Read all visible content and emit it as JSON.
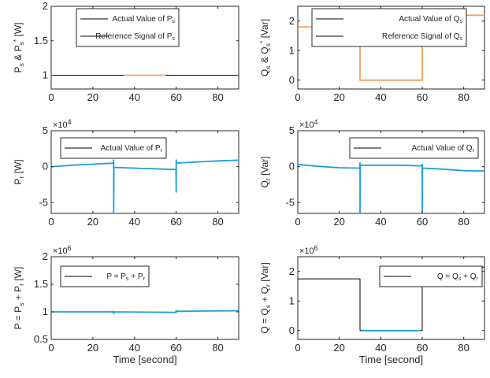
{
  "colors": {
    "actual": "#000000",
    "reference": "#f4a460",
    "rotor": "#1f9fd8",
    "axes": "#262626"
  },
  "chart_data": [
    {
      "type": "line",
      "id": "ps",
      "ylabel": "P_s & P_s^* [W]",
      "xlabel": "",
      "exponent": "",
      "xlim": [
        0,
        90
      ],
      "ylim": [
        0.8,
        2.0
      ],
      "yticks": [
        1,
        1.5,
        2
      ],
      "yticklabels": [
        "1",
        "1.5",
        "2"
      ],
      "xticks": [
        0,
        20,
        40,
        60,
        80
      ],
      "xticklabels": [
        "0",
        "20",
        "40",
        "60",
        "80"
      ],
      "legend": [
        "Actual Value of P_s",
        "Reference Signal of P_s"
      ],
      "series": [
        {
          "name": "Actual Value of P_s",
          "color": "#000000",
          "x": [
            0,
            30,
            30,
            60,
            60,
            90
          ],
          "y": [
            1.0,
            1.0,
            1.0,
            1.0,
            1.0,
            1.0
          ]
        },
        {
          "name": "Reference Signal of P_s",
          "color": "#f4a460",
          "x": [
            35,
            55
          ],
          "y": [
            1.0,
            1.0
          ]
        }
      ]
    },
    {
      "type": "line",
      "id": "qs",
      "ylabel": "Q_s & Q_s^* [Var]",
      "xlabel": "",
      "exponent": "",
      "xlim": [
        0,
        90
      ],
      "ylim": [
        -0.3,
        2.5
      ],
      "yticks": [
        0,
        1,
        2
      ],
      "yticklabels": [
        "0",
        "1",
        "2"
      ],
      "xticks": [
        0,
        20,
        40,
        60,
        80
      ],
      "xticklabels": [
        "0",
        "20",
        "40",
        "60",
        "80"
      ],
      "legend": [
        "Actual Value of Q_s",
        "Reference Signal of Q_s"
      ],
      "series": [
        {
          "name": "Actual Value of Q_s",
          "color": "#000000",
          "x": [
            0,
            30,
            30,
            60,
            60,
            90
          ],
          "y": [
            1.8,
            1.8,
            0.0,
            0.0,
            2.2,
            2.2
          ]
        },
        {
          "name": "Reference Signal of Q_s",
          "color": "#f4a460",
          "x": [
            0,
            30,
            30,
            60,
            60,
            90
          ],
          "y": [
            1.8,
            1.8,
            0.0,
            0.0,
            2.2,
            2.2
          ]
        }
      ]
    },
    {
      "type": "line",
      "id": "pr",
      "ylabel": "P_r [W]",
      "xlabel": "",
      "exponent": "10^4",
      "xlim": [
        0,
        90
      ],
      "ylim": [
        -6.5,
        5
      ],
      "yticks": [
        -5,
        0,
        5
      ],
      "yticklabels": [
        "-5",
        "0",
        "5"
      ],
      "xticks": [
        0,
        20,
        40,
        60,
        80
      ],
      "xticklabels": [
        "0",
        "20",
        "40",
        "60",
        "80"
      ],
      "legend": [
        "Actual Value of P_r"
      ],
      "series": [
        {
          "name": "Actual Value of P_r",
          "color": "#1f9fd8",
          "x": [
            0,
            10,
            20,
            29.9,
            30,
            30,
            30.1,
            40,
            50,
            59.9,
            60,
            60,
            60.1,
            70,
            80,
            90
          ],
          "y": [
            0.0,
            0.2,
            0.35,
            0.5,
            1.0,
            -6.4,
            -0.1,
            -0.2,
            -0.3,
            -0.4,
            -3.6,
            1.0,
            0.5,
            0.65,
            0.8,
            0.9
          ]
        }
      ]
    },
    {
      "type": "line",
      "id": "qr",
      "ylabel": "Q_r [Var]",
      "xlabel": "",
      "exponent": "10^4",
      "xlim": [
        0,
        90
      ],
      "ylim": [
        -6.5,
        5
      ],
      "yticks": [
        -5,
        0,
        5
      ],
      "yticklabels": [
        "-5",
        "0",
        "5"
      ],
      "xticks": [
        0,
        20,
        40,
        60,
        80
      ],
      "xticklabels": [
        "0",
        "20",
        "40",
        "60",
        "80"
      ],
      "legend": [
        "Actual Value of Q_r"
      ],
      "series": [
        {
          "name": "Actual Value of Q_r",
          "color": "#1f9fd8",
          "x": [
            0,
            10,
            20,
            29.9,
            30,
            30,
            30.1,
            40,
            50,
            59.9,
            60,
            60,
            60.1,
            70,
            80,
            90
          ],
          "y": [
            0.3,
            0.05,
            -0.15,
            -0.2,
            0.6,
            -6.4,
            0.2,
            0.2,
            0.2,
            0.1,
            0.4,
            -6.4,
            -0.2,
            -0.35,
            -0.55,
            -0.6
          ]
        }
      ]
    },
    {
      "type": "line",
      "id": "p",
      "ylabel": "P = P_s + P_r [W]",
      "xlabel": "Time [second]",
      "exponent": "10^6",
      "xlim": [
        0,
        90
      ],
      "ylim": [
        0.5,
        2.0
      ],
      "yticks": [
        0.5,
        1,
        1.5,
        2
      ],
      "yticklabels": [
        "0.5",
        "1",
        "1.5",
        "2"
      ],
      "xticks": [
        0,
        20,
        40,
        60,
        80
      ],
      "xticklabels": [
        "0",
        "20",
        "40",
        "60",
        "80"
      ],
      "legend": [
        "P = P_s + P_r"
      ],
      "series": [
        {
          "name": "P = P_s + P_r",
          "color": "#1f9fd8",
          "x": [
            0,
            29.9,
            30,
            30,
            30.1,
            59.9,
            60,
            60,
            60.1,
            90
          ],
          "y": [
            1.0,
            1.0,
            1.02,
            0.96,
            1.0,
            0.99,
            1.03,
            0.99,
            1.01,
            1.02
          ]
        }
      ]
    },
    {
      "type": "line",
      "id": "q",
      "ylabel": "Q = Q_s + Q_r [Var]",
      "xlabel": "Time [second]",
      "exponent": "10^6",
      "xlim": [
        0,
        90
      ],
      "ylim": [
        -0.3,
        2.5
      ],
      "yticks": [
        0,
        1,
        2
      ],
      "yticklabels": [
        "0",
        "1",
        "2"
      ],
      "xticks": [
        0,
        20,
        40,
        60,
        80
      ],
      "xticklabels": [
        "0",
        "20",
        "40",
        "60",
        "80"
      ],
      "legend": [
        "Q = Q_s + Q_r"
      ],
      "series": [
        {
          "name": "Q = Q_s + Q_r",
          "color": "#000000",
          "x": [
            0,
            30,
            30,
            60,
            60,
            90
          ],
          "y": [
            1.75,
            1.75,
            0.0,
            0.0,
            2.15,
            2.15
          ]
        },
        {
          "name": "Q = Q_s + Q_r",
          "color": "#1f9fd8",
          "x": [
            31,
            59
          ],
          "y": [
            0.0,
            0.0
          ]
        }
      ]
    }
  ]
}
